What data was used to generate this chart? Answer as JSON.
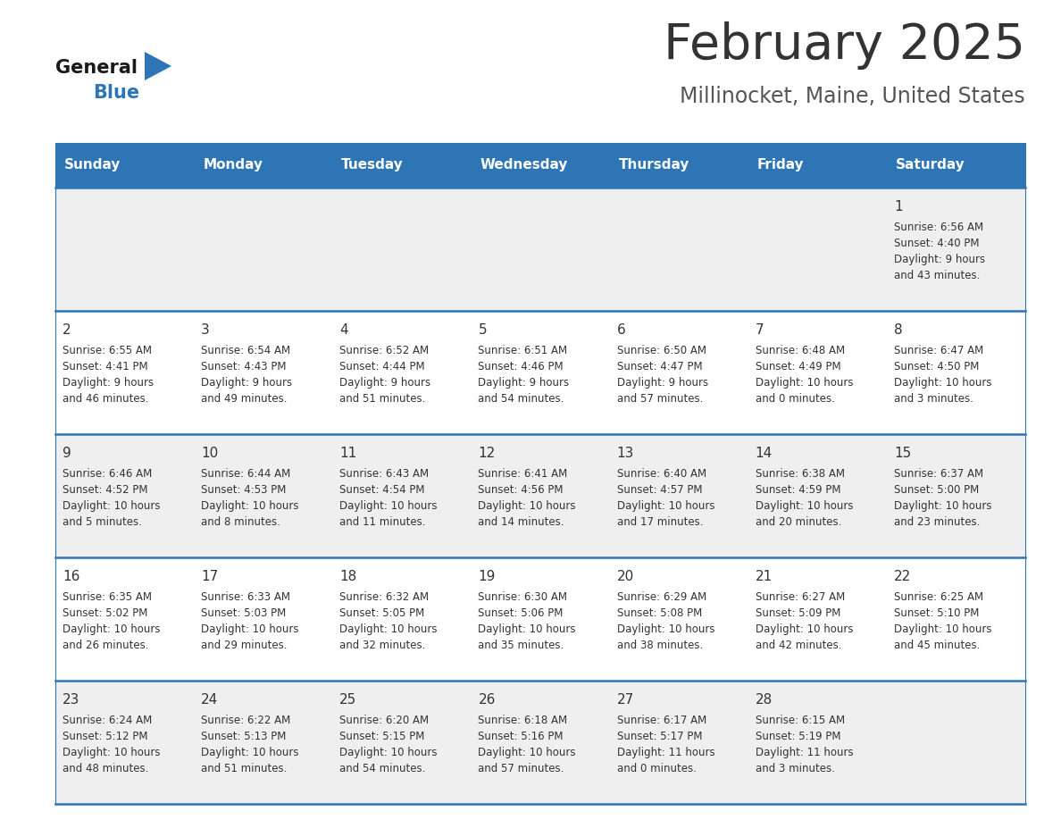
{
  "title": "February 2025",
  "subtitle": "Millinocket, Maine, United States",
  "title_color": "#333333",
  "subtitle_color": "#555555",
  "header_bg_color": "#2E75B6",
  "header_text_color": "#FFFFFF",
  "cell_bg_light": "#EFEFEF",
  "cell_bg_white": "#FFFFFF",
  "cell_border_color": "#2E75B6",
  "day_number_color": "#333333",
  "cell_text_color": "#333333",
  "days_of_week": [
    "Sunday",
    "Monday",
    "Tuesday",
    "Wednesday",
    "Thursday",
    "Friday",
    "Saturday"
  ],
  "calendar_data": [
    [
      {
        "day": null,
        "sunrise": null,
        "sunset": null,
        "daylight": null
      },
      {
        "day": null,
        "sunrise": null,
        "sunset": null,
        "daylight": null
      },
      {
        "day": null,
        "sunrise": null,
        "sunset": null,
        "daylight": null
      },
      {
        "day": null,
        "sunrise": null,
        "sunset": null,
        "daylight": null
      },
      {
        "day": null,
        "sunrise": null,
        "sunset": null,
        "daylight": null
      },
      {
        "day": null,
        "sunrise": null,
        "sunset": null,
        "daylight": null
      },
      {
        "day": 1,
        "sunrise": "6:56 AM",
        "sunset": "4:40 PM",
        "daylight": "9 hours\nand 43 minutes."
      }
    ],
    [
      {
        "day": 2,
        "sunrise": "6:55 AM",
        "sunset": "4:41 PM",
        "daylight": "9 hours\nand 46 minutes."
      },
      {
        "day": 3,
        "sunrise": "6:54 AM",
        "sunset": "4:43 PM",
        "daylight": "9 hours\nand 49 minutes."
      },
      {
        "day": 4,
        "sunrise": "6:52 AM",
        "sunset": "4:44 PM",
        "daylight": "9 hours\nand 51 minutes."
      },
      {
        "day": 5,
        "sunrise": "6:51 AM",
        "sunset": "4:46 PM",
        "daylight": "9 hours\nand 54 minutes."
      },
      {
        "day": 6,
        "sunrise": "6:50 AM",
        "sunset": "4:47 PM",
        "daylight": "9 hours\nand 57 minutes."
      },
      {
        "day": 7,
        "sunrise": "6:48 AM",
        "sunset": "4:49 PM",
        "daylight": "10 hours\nand 0 minutes."
      },
      {
        "day": 8,
        "sunrise": "6:47 AM",
        "sunset": "4:50 PM",
        "daylight": "10 hours\nand 3 minutes."
      }
    ],
    [
      {
        "day": 9,
        "sunrise": "6:46 AM",
        "sunset": "4:52 PM",
        "daylight": "10 hours\nand 5 minutes."
      },
      {
        "day": 10,
        "sunrise": "6:44 AM",
        "sunset": "4:53 PM",
        "daylight": "10 hours\nand 8 minutes."
      },
      {
        "day": 11,
        "sunrise": "6:43 AM",
        "sunset": "4:54 PM",
        "daylight": "10 hours\nand 11 minutes."
      },
      {
        "day": 12,
        "sunrise": "6:41 AM",
        "sunset": "4:56 PM",
        "daylight": "10 hours\nand 14 minutes."
      },
      {
        "day": 13,
        "sunrise": "6:40 AM",
        "sunset": "4:57 PM",
        "daylight": "10 hours\nand 17 minutes."
      },
      {
        "day": 14,
        "sunrise": "6:38 AM",
        "sunset": "4:59 PM",
        "daylight": "10 hours\nand 20 minutes."
      },
      {
        "day": 15,
        "sunrise": "6:37 AM",
        "sunset": "5:00 PM",
        "daylight": "10 hours\nand 23 minutes."
      }
    ],
    [
      {
        "day": 16,
        "sunrise": "6:35 AM",
        "sunset": "5:02 PM",
        "daylight": "10 hours\nand 26 minutes."
      },
      {
        "day": 17,
        "sunrise": "6:33 AM",
        "sunset": "5:03 PM",
        "daylight": "10 hours\nand 29 minutes."
      },
      {
        "day": 18,
        "sunrise": "6:32 AM",
        "sunset": "5:05 PM",
        "daylight": "10 hours\nand 32 minutes."
      },
      {
        "day": 19,
        "sunrise": "6:30 AM",
        "sunset": "5:06 PM",
        "daylight": "10 hours\nand 35 minutes."
      },
      {
        "day": 20,
        "sunrise": "6:29 AM",
        "sunset": "5:08 PM",
        "daylight": "10 hours\nand 38 minutes."
      },
      {
        "day": 21,
        "sunrise": "6:27 AM",
        "sunset": "5:09 PM",
        "daylight": "10 hours\nand 42 minutes."
      },
      {
        "day": 22,
        "sunrise": "6:25 AM",
        "sunset": "5:10 PM",
        "daylight": "10 hours\nand 45 minutes."
      }
    ],
    [
      {
        "day": 23,
        "sunrise": "6:24 AM",
        "sunset": "5:12 PM",
        "daylight": "10 hours\nand 48 minutes."
      },
      {
        "day": 24,
        "sunrise": "6:22 AM",
        "sunset": "5:13 PM",
        "daylight": "10 hours\nand 51 minutes."
      },
      {
        "day": 25,
        "sunrise": "6:20 AM",
        "sunset": "5:15 PM",
        "daylight": "10 hours\nand 54 minutes."
      },
      {
        "day": 26,
        "sunrise": "6:18 AM",
        "sunset": "5:16 PM",
        "daylight": "10 hours\nand 57 minutes."
      },
      {
        "day": 27,
        "sunrise": "6:17 AM",
        "sunset": "5:17 PM",
        "daylight": "11 hours\nand 0 minutes."
      },
      {
        "day": 28,
        "sunrise": "6:15 AM",
        "sunset": "5:19 PM",
        "daylight": "11 hours\nand 3 minutes."
      },
      {
        "day": null,
        "sunrise": null,
        "sunset": null,
        "daylight": null
      }
    ]
  ],
  "logo_text_general": "General",
  "logo_text_blue": "Blue",
  "logo_triangle_color": "#2E75B6",
  "logo_general_color": "#1a1a1a"
}
